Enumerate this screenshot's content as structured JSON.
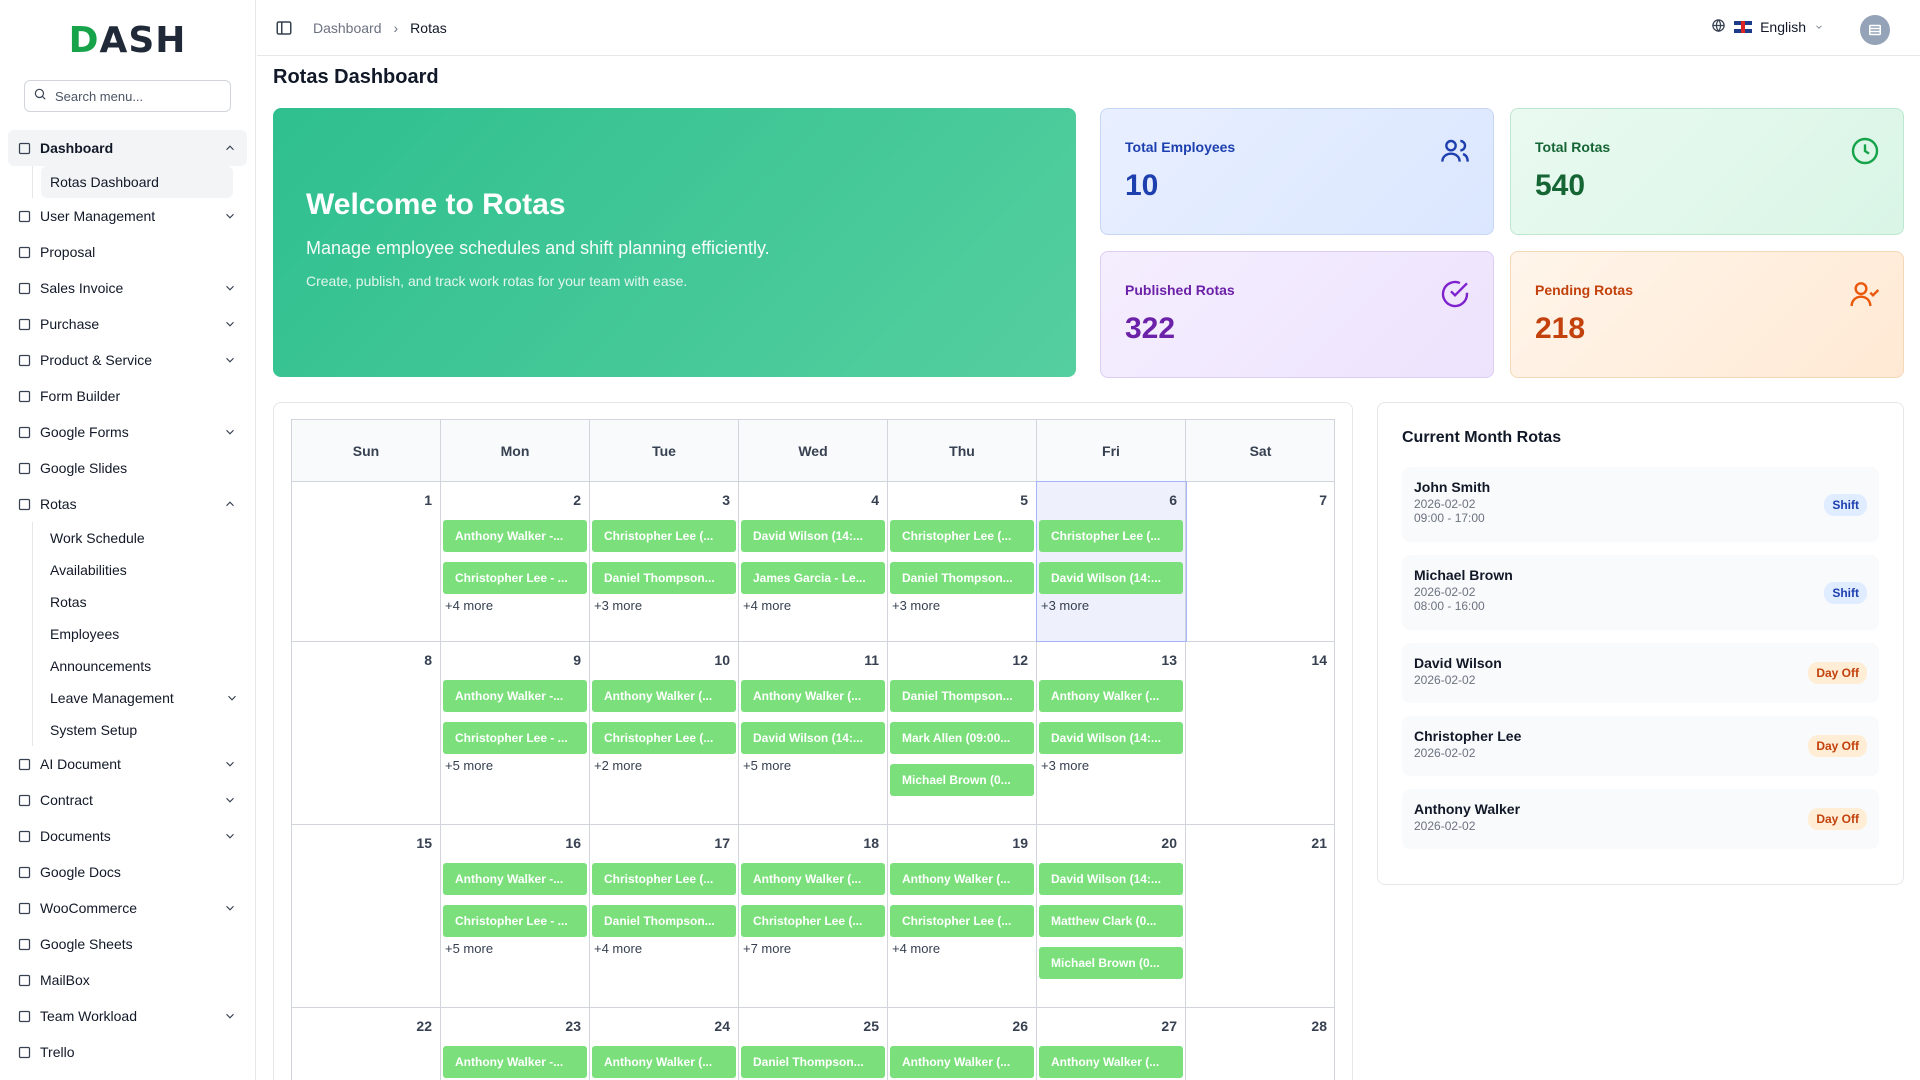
{
  "brand": {
    "logo_text": "DASH"
  },
  "search": {
    "placeholder": "Search menu..."
  },
  "sidebar": {
    "items": [
      {
        "label": "Dashboard",
        "icon": "grid-icon",
        "expanded": true,
        "children": [
          "Rotas Dashboard"
        ]
      },
      {
        "label": "User Management",
        "icon": "users-icon",
        "has_children": true
      },
      {
        "label": "Proposal",
        "icon": "proposal-icon"
      },
      {
        "label": "Sales Invoice",
        "icon": "invoice-icon",
        "has_children": true
      },
      {
        "label": "Purchase",
        "icon": "cart-icon",
        "has_children": true
      },
      {
        "label": "Product & Service",
        "icon": "layers-icon",
        "has_children": true
      },
      {
        "label": "Form Builder",
        "icon": "form-icon"
      },
      {
        "label": "Google Forms",
        "icon": "doc-icon",
        "has_children": true
      },
      {
        "label": "Google Slides",
        "icon": "slides-icon"
      },
      {
        "label": "Rotas",
        "icon": "calendar-clock-icon",
        "expanded": true,
        "children": [
          "Work Schedule",
          "Availabilities",
          "Rotas",
          "Employees",
          "Announcements",
          "Leave Management",
          "System Setup"
        ]
      },
      {
        "label": "AI Document",
        "icon": "ai-doc-icon",
        "has_children": true
      },
      {
        "label": "Contract",
        "icon": "contract-icon",
        "has_children": true
      },
      {
        "label": "Documents",
        "icon": "documents-icon",
        "has_children": true
      },
      {
        "label": "Google Docs",
        "icon": "gdocs-icon"
      },
      {
        "label": "WooCommerce",
        "icon": "store-icon",
        "has_children": true
      },
      {
        "label": "Google Sheets",
        "icon": "sheet-icon"
      },
      {
        "label": "MailBox",
        "icon": "mail-icon"
      },
      {
        "label": "Team Workload",
        "icon": "gauge-icon",
        "has_children": true
      },
      {
        "label": "Trello",
        "icon": "trello-icon"
      }
    ]
  },
  "header": {
    "breadcrumb": [
      "Dashboard",
      "Rotas"
    ],
    "language": "English"
  },
  "page": {
    "title": "Rotas Dashboard"
  },
  "hero": {
    "title": "Welcome to Rotas",
    "subtitle": "Manage employee schedules and shift planning efficiently.",
    "text": "Create, publish, and track work rotas for your team with ease."
  },
  "stats": [
    {
      "label": "Total Employees",
      "value": "10",
      "icon": "users-icon"
    },
    {
      "label": "Total Rotas",
      "value": "540",
      "icon": "clock-icon"
    },
    {
      "label": "Published Rotas",
      "value": "322",
      "icon": "check-circle-icon"
    },
    {
      "label": "Pending Rotas",
      "value": "218",
      "icon": "user-check-icon"
    }
  ],
  "calendar": {
    "weekdays": [
      "Sun",
      "Mon",
      "Tue",
      "Wed",
      "Thu",
      "Fri",
      "Sat"
    ],
    "today": "6",
    "weeks": [
      [
        {
          "day": "1",
          "events": [],
          "more": ""
        },
        {
          "day": "2",
          "events": [
            "Anthony Walker -...",
            "Christopher Lee - ..."
          ],
          "more": "+4 more"
        },
        {
          "day": "3",
          "events": [
            "Christopher Lee (...",
            "Daniel Thompson..."
          ],
          "more": "+3 more"
        },
        {
          "day": "4",
          "events": [
            "David Wilson (14:...",
            "James Garcia - Le..."
          ],
          "more": "+4 more"
        },
        {
          "day": "5",
          "events": [
            "Christopher Lee (...",
            "Daniel Thompson..."
          ],
          "more": "+3 more"
        },
        {
          "day": "6",
          "events": [
            "Christopher Lee (...",
            "David Wilson (14:..."
          ],
          "more": "+3 more"
        },
        {
          "day": "7",
          "events": [],
          "more": ""
        }
      ],
      [
        {
          "day": "8",
          "events": [],
          "more": ""
        },
        {
          "day": "9",
          "events": [
            "Anthony Walker -...",
            "Christopher Lee - ..."
          ],
          "more": "+5 more"
        },
        {
          "day": "10",
          "events": [
            "Anthony Walker (...",
            "Christopher Lee (..."
          ],
          "more": "+2 more"
        },
        {
          "day": "11",
          "events": [
            "Anthony Walker (...",
            "David Wilson (14:..."
          ],
          "more": "+5 more"
        },
        {
          "day": "12",
          "events": [
            "Daniel Thompson...",
            "Mark Allen (09:00...",
            "Michael Brown (0..."
          ],
          "more": ""
        },
        {
          "day": "13",
          "events": [
            "Anthony Walker (...",
            "David Wilson (14:..."
          ],
          "more": "+3 more"
        },
        {
          "day": "14",
          "events": [],
          "more": ""
        }
      ],
      [
        {
          "day": "15",
          "events": [],
          "more": ""
        },
        {
          "day": "16",
          "events": [
            "Anthony Walker -...",
            "Christopher Lee - ..."
          ],
          "more": "+5 more"
        },
        {
          "day": "17",
          "events": [
            "Christopher Lee (...",
            "Daniel Thompson..."
          ],
          "more": "+4 more"
        },
        {
          "day": "18",
          "events": [
            "Anthony Walker (...",
            "Christopher Lee (..."
          ],
          "more": "+7 more"
        },
        {
          "day": "19",
          "events": [
            "Anthony Walker (...",
            "Christopher Lee (..."
          ],
          "more": "+4 more"
        },
        {
          "day": "20",
          "events": [
            "David Wilson (14:...",
            "Matthew Clark (0...",
            "Michael Brown (0..."
          ],
          "more": ""
        },
        {
          "day": "21",
          "events": [],
          "more": ""
        }
      ],
      [
        {
          "day": "22",
          "events": [],
          "more": ""
        },
        {
          "day": "23",
          "events": [
            "Anthony Walker -..."
          ],
          "more": ""
        },
        {
          "day": "24",
          "events": [
            "Anthony Walker (..."
          ],
          "more": ""
        },
        {
          "day": "25",
          "events": [
            "Daniel Thompson..."
          ],
          "more": ""
        },
        {
          "day": "26",
          "events": [
            "Anthony Walker (..."
          ],
          "more": ""
        },
        {
          "day": "27",
          "events": [
            "Anthony Walker (..."
          ],
          "more": ""
        },
        {
          "day": "28",
          "events": [],
          "more": ""
        }
      ]
    ]
  },
  "current_month": {
    "title": "Current Month Rotas",
    "items": [
      {
        "name": "John Smith",
        "date": "2026-02-02",
        "time": "09:00 - 17:00",
        "badge": "Shift",
        "type": "shift"
      },
      {
        "name": "Michael Brown",
        "date": "2026-02-02",
        "time": "08:00 - 16:00",
        "badge": "Shift",
        "type": "shift"
      },
      {
        "name": "David Wilson",
        "date": "2026-02-02",
        "time": "",
        "badge": "Day Off",
        "type": "off"
      },
      {
        "name": "Christopher Lee",
        "date": "2026-02-02",
        "time": "",
        "badge": "Day Off",
        "type": "off"
      },
      {
        "name": "Anthony Walker",
        "date": "2026-02-02",
        "time": "",
        "badge": "Day Off",
        "type": "off"
      }
    ]
  },
  "colors": {
    "accent": "#2fbf8f",
    "event": "#7be07b",
    "blue": "#1e40af",
    "green": "#166534",
    "purple": "#6b21a8",
    "orange": "#c2410c"
  }
}
